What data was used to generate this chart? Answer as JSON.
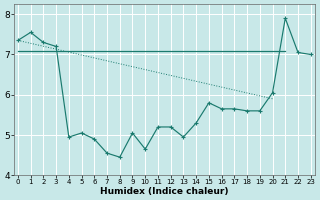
{
  "xlabel": "Humidex (Indice chaleur)",
  "x_main": [
    0,
    1,
    2,
    3,
    4,
    5,
    6,
    7,
    8,
    9,
    10,
    11,
    12,
    13,
    14,
    15,
    16,
    17,
    18,
    19,
    20,
    21,
    22,
    23
  ],
  "y_main": [
    7.35,
    7.55,
    7.3,
    7.2,
    4.95,
    5.05,
    4.9,
    4.55,
    4.45,
    5.05,
    4.65,
    5.2,
    5.2,
    4.95,
    5.3,
    5.8,
    5.65,
    5.65,
    5.6,
    5.6,
    6.05,
    7.9,
    7.05,
    7.0
  ],
  "x_flat_start": 0,
  "x_flat_end": 21,
  "y_flat": 7.08,
  "x_diag_start": 0,
  "x_diag_end": 20,
  "y_diag_start": 7.35,
  "y_diag_end": 5.9,
  "color": "#1a7a6e",
  "bg_color": "#c8e8e8",
  "grid_color": "#ffffff",
  "ylim": [
    4.0,
    8.25
  ],
  "xlim": [
    -0.3,
    23.3
  ],
  "yticks": [
    4,
    5,
    6,
    7,
    8
  ],
  "xticks": [
    0,
    1,
    2,
    3,
    4,
    5,
    6,
    7,
    8,
    9,
    10,
    11,
    12,
    13,
    14,
    15,
    16,
    17,
    18,
    19,
    20,
    21,
    22,
    23
  ],
  "xlabel_fontsize": 6.5,
  "tick_fontsize_x": 5.0,
  "tick_fontsize_y": 6.5
}
